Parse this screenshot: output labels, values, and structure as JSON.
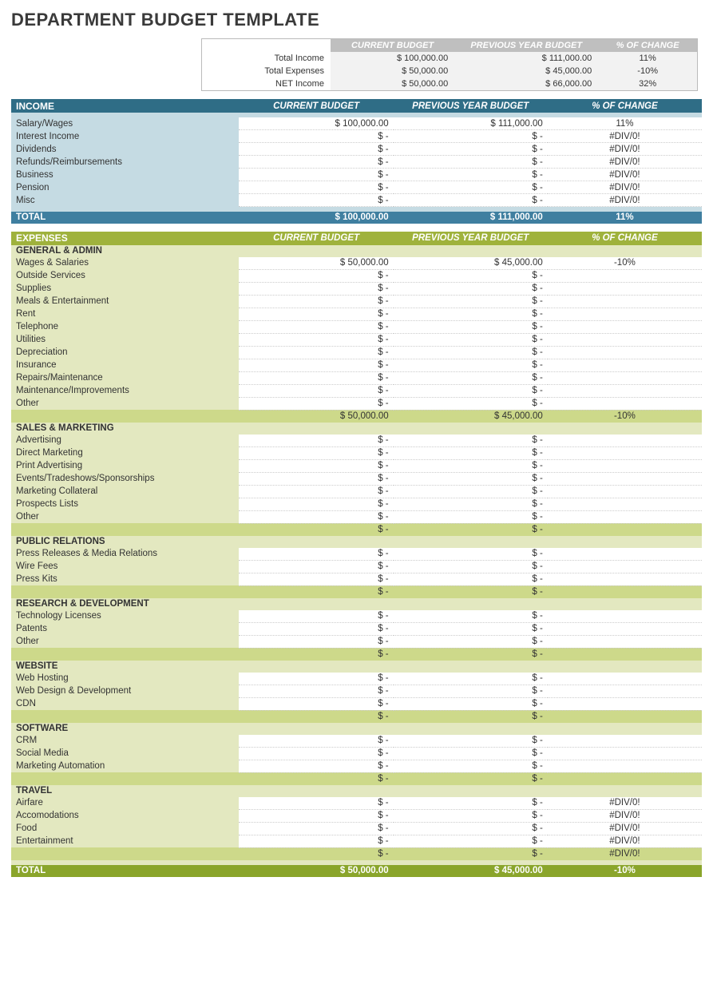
{
  "title": "DEPARTMENT BUDGET TEMPLATE",
  "columns": {
    "current": "CURRENT BUDGET",
    "previous": "PREVIOUS YEAR BUDGET",
    "change": "% OF CHANGE"
  },
  "summary": {
    "rows": [
      {
        "label": "Total Income",
        "current": "$ 100,000.00",
        "previous": "$ 111,000.00",
        "change": "11%"
      },
      {
        "label": "Total Expenses",
        "current": "$ 50,000.00",
        "previous": "$ 45,000.00",
        "change": "-10%"
      },
      {
        "label": "NET Income",
        "current": "$ 50,000.00",
        "previous": "$ 66,000.00",
        "change": "32%"
      }
    ]
  },
  "income": {
    "title": "INCOME",
    "rows": [
      {
        "label": "Salary/Wages",
        "current": "$ 100,000.00",
        "previous": "$ 111,000.00",
        "change": "11%"
      },
      {
        "label": "Interest Income",
        "current": "$ -",
        "previous": "$ -",
        "change": "#DIV/0!"
      },
      {
        "label": "Dividends",
        "current": "$ -",
        "previous": "$ -",
        "change": "#DIV/0!"
      },
      {
        "label": "Refunds/Reimbursements",
        "current": "$ -",
        "previous": "$ -",
        "change": "#DIV/0!"
      },
      {
        "label": "Business",
        "current": "$ -",
        "previous": "$ -",
        "change": "#DIV/0!"
      },
      {
        "label": "Pension",
        "current": "$ -",
        "previous": "$ -",
        "change": "#DIV/0!"
      },
      {
        "label": "Misc",
        "current": "$ -",
        "previous": "$ -",
        "change": "#DIV/0!"
      }
    ],
    "total": {
      "label": "TOTAL",
      "current": "$ 100,000.00",
      "previous": "$ 111,000.00",
      "change": "11%"
    }
  },
  "expenses": {
    "title": "EXPENSES",
    "groups": [
      {
        "name": "GENERAL & ADMIN",
        "rows": [
          {
            "label": "Wages & Salaries",
            "current": "$ 50,000.00",
            "previous": "$ 45,000.00",
            "change": "-10%"
          },
          {
            "label": "Outside Services",
            "current": "$ -",
            "previous": "$ -",
            "change": ""
          },
          {
            "label": "Supplies",
            "current": "$ -",
            "previous": "$ -",
            "change": ""
          },
          {
            "label": "Meals & Entertainment",
            "current": "$ -",
            "previous": "$ -",
            "change": ""
          },
          {
            "label": "Rent",
            "current": "$ -",
            "previous": "$ -",
            "change": ""
          },
          {
            "label": "Telephone",
            "current": "$ -",
            "previous": "$ -",
            "change": ""
          },
          {
            "label": "Utilities",
            "current": "$ -",
            "previous": "$ -",
            "change": ""
          },
          {
            "label": "Depreciation",
            "current": "$ -",
            "previous": "$ -",
            "change": ""
          },
          {
            "label": "Insurance",
            "current": "$ -",
            "previous": "$ -",
            "change": ""
          },
          {
            "label": "Repairs/Maintenance",
            "current": "$ -",
            "previous": "$ -",
            "change": ""
          },
          {
            "label": "Maintenance/Improvements",
            "current": "$ -",
            "previous": "$ -",
            "change": ""
          },
          {
            "label": "Other",
            "current": "$ -",
            "previous": "$ -",
            "change": ""
          }
        ],
        "subtotal": {
          "current": "$ 50,000.00",
          "previous": "$ 45,000.00",
          "change": "-10%"
        }
      },
      {
        "name": "SALES & MARKETING",
        "rows": [
          {
            "label": "Advertising",
            "current": "$ -",
            "previous": "$ -",
            "change": ""
          },
          {
            "label": "Direct Marketing",
            "current": "$ -",
            "previous": "$ -",
            "change": ""
          },
          {
            "label": "Print Advertising",
            "current": "$ -",
            "previous": "$ -",
            "change": ""
          },
          {
            "label": "Events/Tradeshows/Sponsorships",
            "current": "$ -",
            "previous": "$ -",
            "change": ""
          },
          {
            "label": "Marketing Collateral",
            "current": "$ -",
            "previous": "$ -",
            "change": ""
          },
          {
            "label": "Prospects Lists",
            "current": "$ -",
            "previous": "$ -",
            "change": ""
          },
          {
            "label": "Other",
            "current": "$ -",
            "previous": "$ -",
            "change": ""
          }
        ],
        "subtotal": {
          "current": "$ -",
          "previous": "$ -",
          "change": ""
        }
      },
      {
        "name": "PUBLIC RELATIONS",
        "rows": [
          {
            "label": "Press Releases & Media Relations",
            "current": "$ -",
            "previous": "$ -",
            "change": ""
          },
          {
            "label": "Wire Fees",
            "current": "$ -",
            "previous": "$ -",
            "change": ""
          },
          {
            "label": "Press Kits",
            "current": "$ -",
            "previous": "$ -",
            "change": ""
          }
        ],
        "subtotal": {
          "current": "$ -",
          "previous": "$ -",
          "change": ""
        }
      },
      {
        "name": "RESEARCH & DEVELOPMENT",
        "rows": [
          {
            "label": "Technology Licenses",
            "current": "$ -",
            "previous": "$ -",
            "change": ""
          },
          {
            "label": "Patents",
            "current": "$ -",
            "previous": "$ -",
            "change": ""
          },
          {
            "label": "Other",
            "current": "$ -",
            "previous": "$ -",
            "change": ""
          }
        ],
        "subtotal": {
          "current": "$ -",
          "previous": "$ -",
          "change": ""
        }
      },
      {
        "name": "WEBSITE",
        "rows": [
          {
            "label": "Web Hosting",
            "current": "$ -",
            "previous": "$ -",
            "change": ""
          },
          {
            "label": "Web Design & Development",
            "current": "$ -",
            "previous": "$ -",
            "change": ""
          },
          {
            "label": "CDN",
            "current": "$ -",
            "previous": "$ -",
            "change": ""
          }
        ],
        "subtotal": {
          "current": "$ -",
          "previous": "$ -",
          "change": ""
        }
      },
      {
        "name": "SOFTWARE",
        "rows": [
          {
            "label": "CRM",
            "current": "$ -",
            "previous": "$ -",
            "change": ""
          },
          {
            "label": "Social Media",
            "current": "$ -",
            "previous": "$ -",
            "change": ""
          },
          {
            "label": "Marketing Automation",
            "current": "$ -",
            "previous": "$ -",
            "change": ""
          }
        ],
        "subtotal": {
          "current": "$ -",
          "previous": "$ -",
          "change": ""
        }
      },
      {
        "name": "TRAVEL",
        "rows": [
          {
            "label": "Airfare",
            "current": "$ -",
            "previous": "$ -",
            "change": "#DIV/0!"
          },
          {
            "label": "Accomodations",
            "current": "$ -",
            "previous": "$ -",
            "change": "#DIV/0!"
          },
          {
            "label": "Food",
            "current": "$ -",
            "previous": "$ -",
            "change": "#DIV/0!"
          },
          {
            "label": "Entertainment",
            "current": "$ -",
            "previous": "$ -",
            "change": "#DIV/0!"
          }
        ],
        "subtotal": {
          "current": "$ -",
          "previous": "$ -",
          "change": "#DIV/0!"
        }
      }
    ],
    "total": {
      "label": "TOTAL",
      "current": "$ 50,000.00",
      "previous": "$ 45,000.00",
      "change": "-10%"
    }
  },
  "colors": {
    "summary_header": "#bfbfbf",
    "summary_body": "#f2f2f2",
    "income_bar": "#2f6d86",
    "income_body": "#c5dbe3",
    "income_total": "#3f7fa0",
    "expense_bar": "#9fb23c",
    "expense_body": "#e3e8c0",
    "expense_subtotal": "#cdd98a",
    "expense_total": "#8aa52b"
  }
}
